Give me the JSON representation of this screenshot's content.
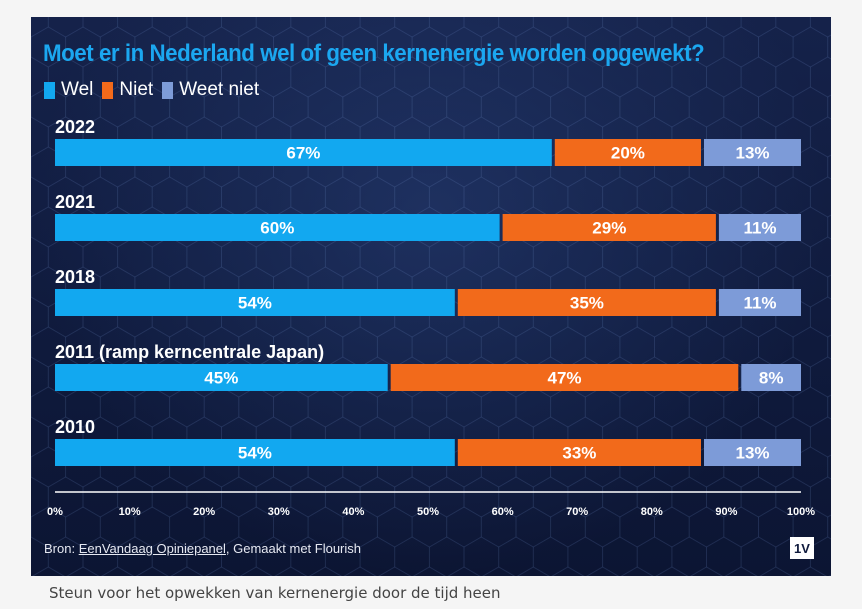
{
  "title": "Moet er in Nederland wel of geen kernenergie worden opgewekt?",
  "legend": [
    {
      "label": "Wel",
      "color": "#12a8f0"
    },
    {
      "label": "Niet",
      "color": "#f26a1b"
    },
    {
      "label": "Weet niet",
      "color": "#7d9bd8"
    }
  ],
  "source": {
    "prefix": "Bron: ",
    "link": "EenVandaag Opiniepanel",
    "suffix": ", Gemaakt met Flourish"
  },
  "logo": "1V",
  "caption": "Steun voor het opwekken van kernenergie door de tijd heen",
  "chart_data": {
    "type": "bar",
    "orientation": "horizontal",
    "stacked": true,
    "title": "Moet er in Nederland wel of geen kernenergie worden opgewekt?",
    "categories": [
      "2022",
      "2021",
      "2018",
      "2011 (ramp kerncentrale Japan)",
      "2010"
    ],
    "series": [
      {
        "name": "Wel",
        "color": "#12a8f0",
        "values": [
          67,
          60,
          54,
          45,
          54
        ]
      },
      {
        "name": "Niet",
        "color": "#f26a1b",
        "values": [
          20,
          29,
          35,
          47,
          33
        ]
      },
      {
        "name": "Weet niet",
        "color": "#7d9bd8",
        "values": [
          13,
          11,
          11,
          8,
          13
        ]
      }
    ],
    "value_suffix": "%",
    "xlim": [
      0,
      100
    ],
    "xticks": [
      0,
      10,
      20,
      30,
      40,
      50,
      60,
      70,
      80,
      90,
      100
    ],
    "tick_suffix": "%",
    "legend_position": "top-left",
    "grid": false
  }
}
